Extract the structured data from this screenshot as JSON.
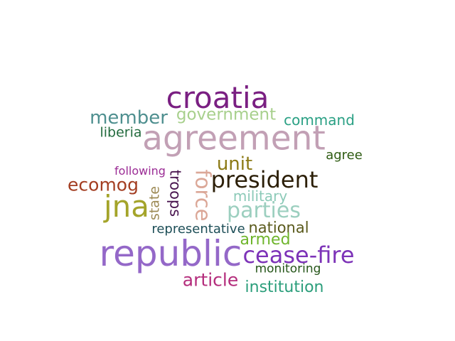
{
  "words": [
    {
      "text": "croatia",
      "color": "#7a1f82"
    },
    {
      "text": "member",
      "color": "#4e8f8f"
    },
    {
      "text": "government",
      "color": "#a8d08d"
    },
    {
      "text": "command",
      "color": "#2aa084"
    },
    {
      "text": "liberia",
      "color": "#236b3e"
    },
    {
      "text": "agreement",
      "color": "#c2a0b5"
    },
    {
      "text": "agree",
      "color": "#2e5b12"
    },
    {
      "text": "unit",
      "color": "#8c7a16"
    },
    {
      "text": "following",
      "color": "#9b2c95"
    },
    {
      "text": "troops",
      "color": "#4a1650"
    },
    {
      "text": "force",
      "color": "#dba797"
    },
    {
      "text": "president",
      "color": "#2c1f08"
    },
    {
      "text": "ecomog",
      "color": "#a33e22"
    },
    {
      "text": "state",
      "color": "#9d8a55"
    },
    {
      "text": "military",
      "color": "#8ccab8"
    },
    {
      "text": "jna",
      "color": "#a4a42a"
    },
    {
      "text": "parties",
      "color": "#9ccfbf"
    },
    {
      "text": "representative",
      "color": "#1d4e57"
    },
    {
      "text": "national",
      "color": "#5a5a1c"
    },
    {
      "text": "armed",
      "color": "#6fb52c"
    },
    {
      "text": "republic",
      "color": "#9468c8"
    },
    {
      "text": "cease-fire",
      "color": "#7d33b8"
    },
    {
      "text": "monitoring",
      "color": "#26561a"
    },
    {
      "text": "article",
      "color": "#b42d7c"
    },
    {
      "text": "institution",
      "color": "#2b9e7b"
    }
  ]
}
